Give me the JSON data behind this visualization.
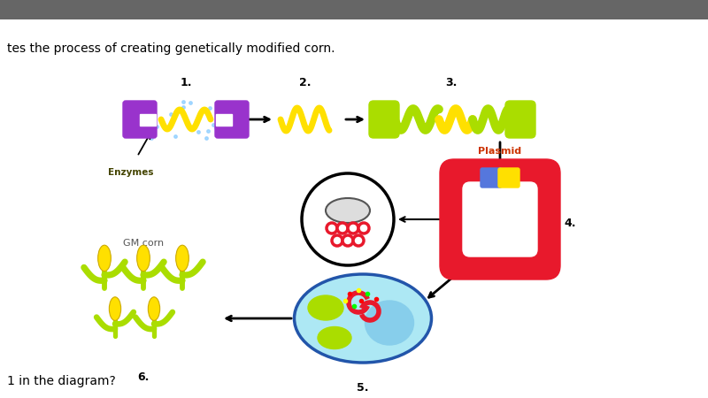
{
  "title_text": "tes the process of creating genetically modified corn.",
  "bottom_text": "1 in the diagram?",
  "bg_color": "#ffffff",
  "step1_label": "1.",
  "step2_label": "2.",
  "step3_label": "3.",
  "step4_label": "4.",
  "step5_label": "5.",
  "step6_label": "6.",
  "enzymes_label": "Enzymes",
  "plasmid_label": "Plasmid",
  "gmcorn_label": "GM corn",
  "purple_color": "#9933CC",
  "yellow_color": "#FFE000",
  "lime_color": "#AADD00",
  "red_color": "#E8192C",
  "blue_label": "#5B8BDE",
  "yellow_label": "#FFE000",
  "dark_blue": "#2255AA",
  "light_blue_fill": "#ADE8F4",
  "cell_blue": "#4499CC",
  "dark_color": "#222222",
  "top_bar_color": "#666666"
}
